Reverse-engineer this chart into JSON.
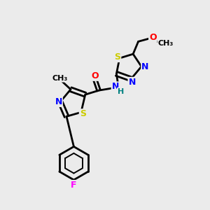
{
  "bg_color": "#ebebeb",
  "line_color": "#000000",
  "bond_width": 2.0,
  "atom_colors": {
    "N": "#0000ff",
    "O": "#ff0000",
    "S": "#cccc00",
    "F": "#ff00ff",
    "C": "#000000",
    "H": "#008080"
  },
  "font_size": 9,
  "fig_size": [
    3.0,
    3.0
  ],
  "dpi": 100
}
